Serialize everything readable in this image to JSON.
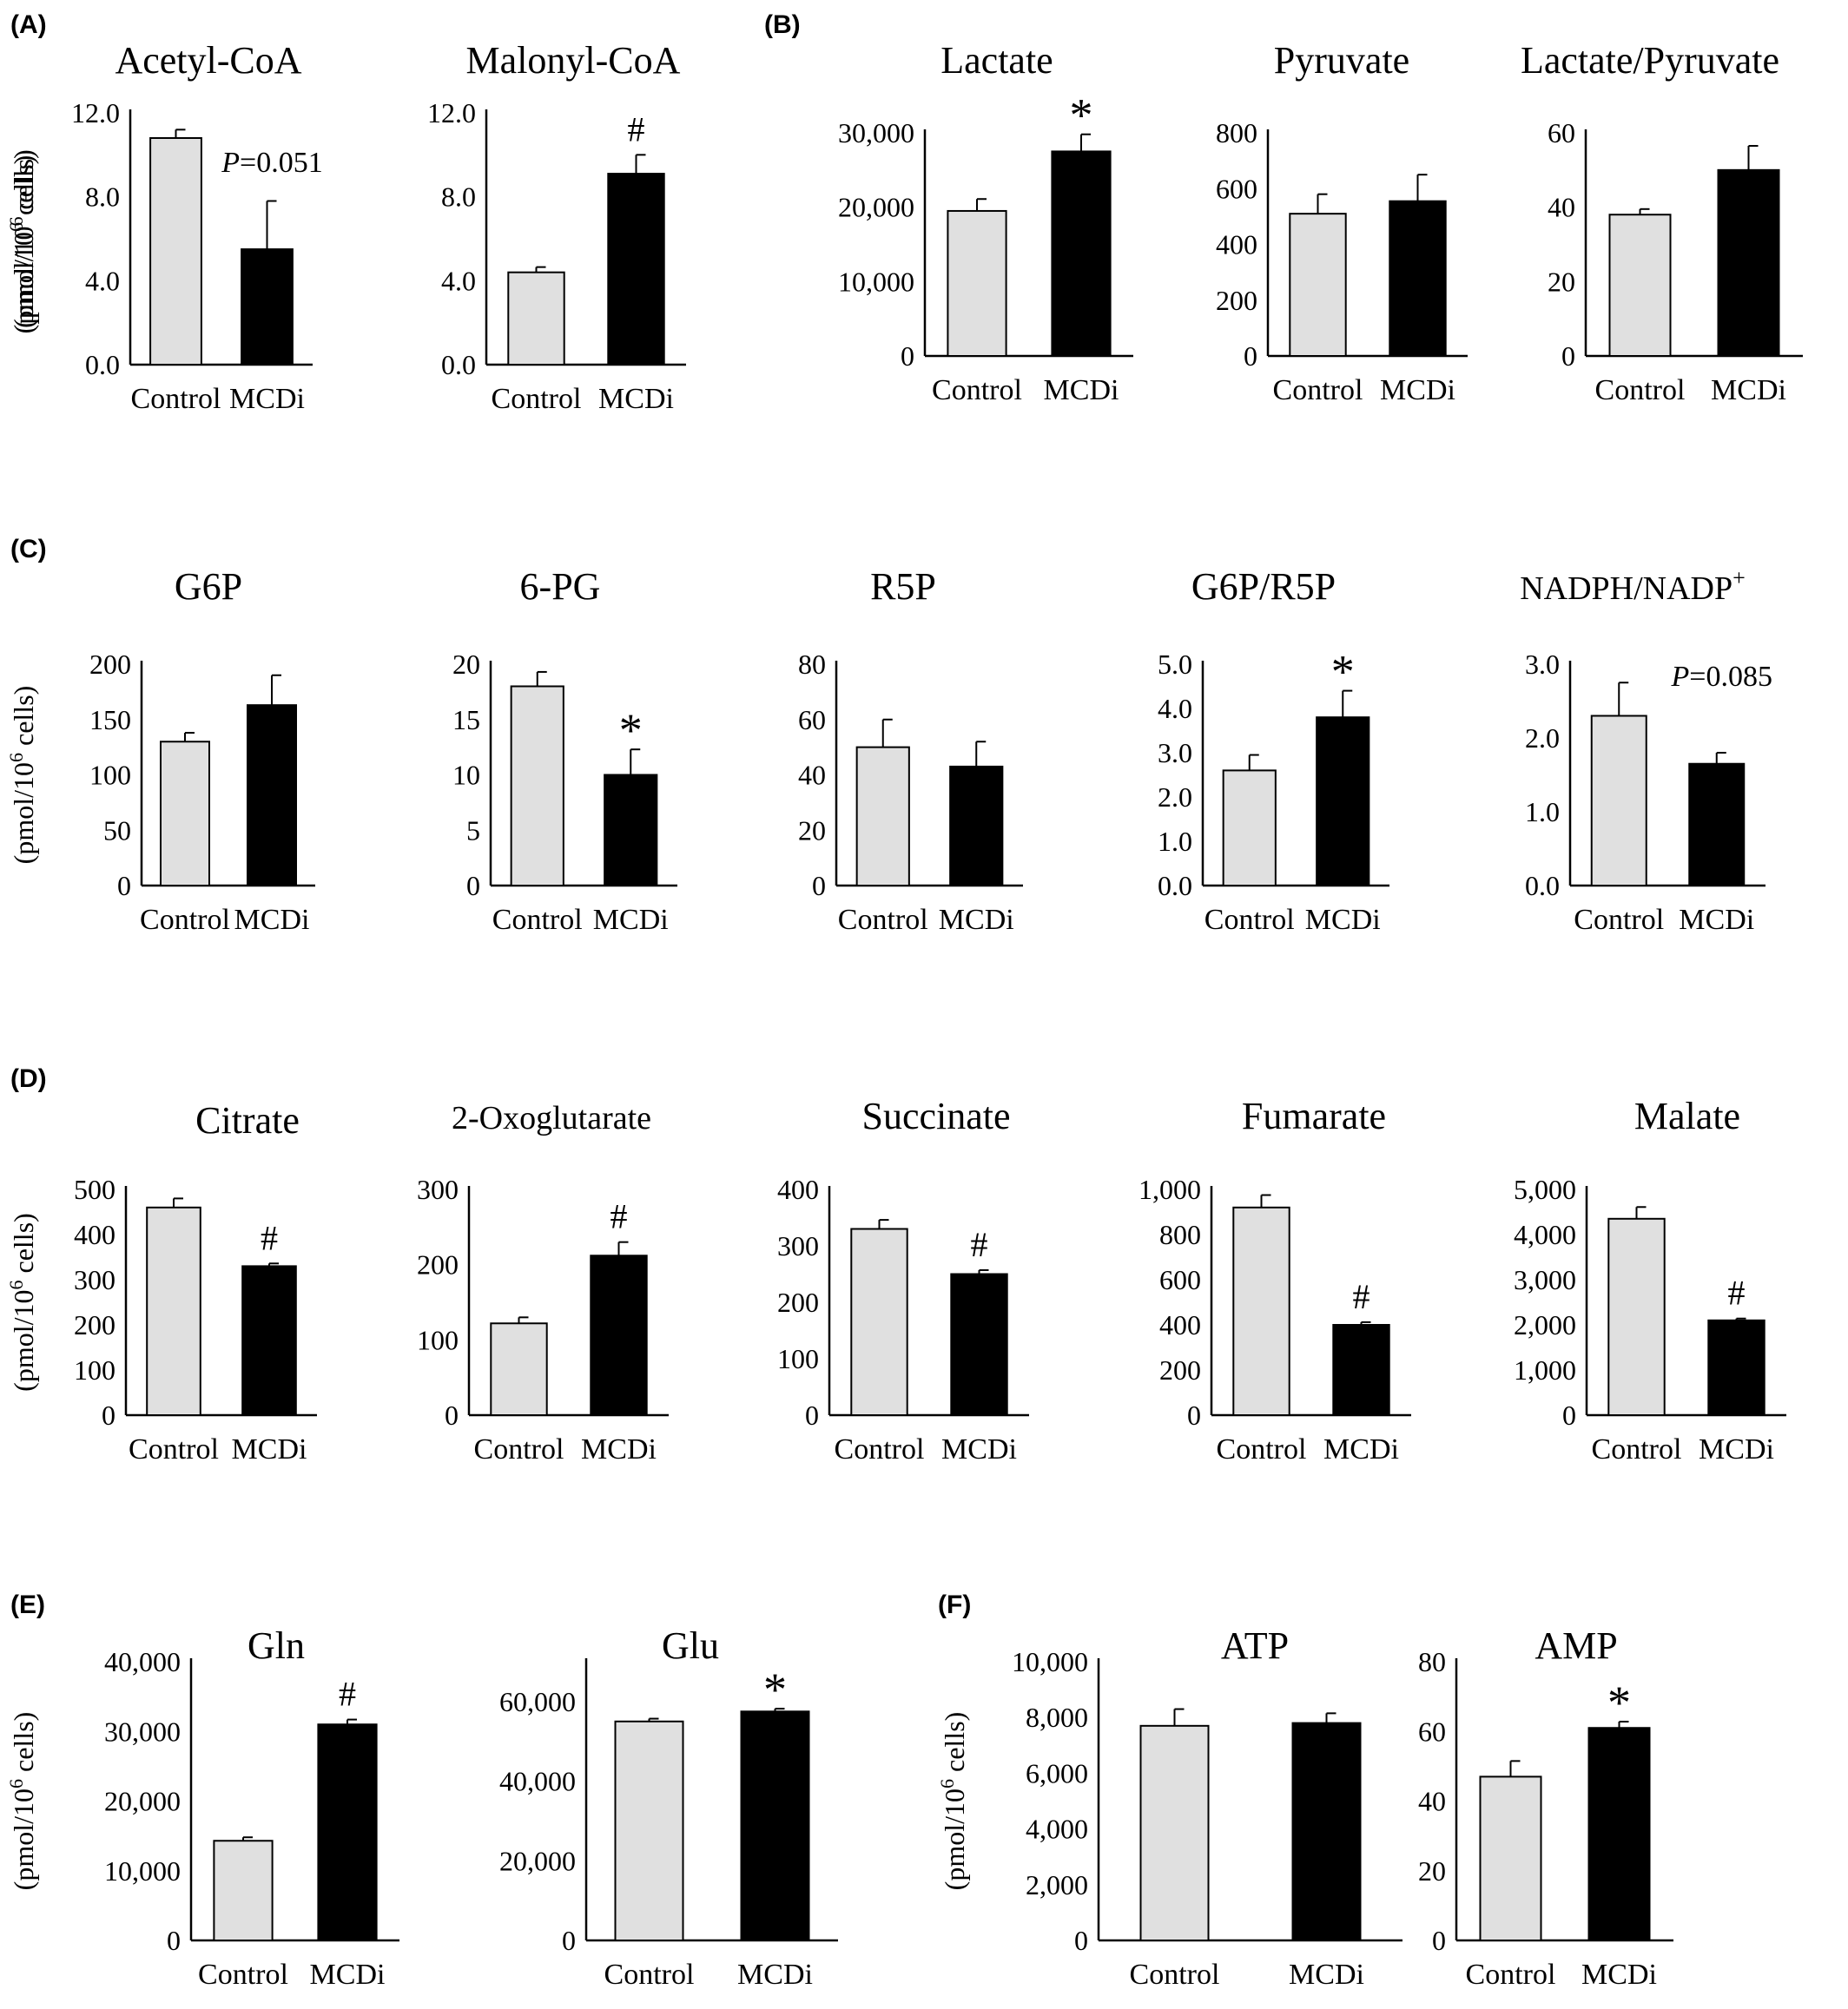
{
  "panel_labels": [
    "(A)",
    "(B)",
    "(C)",
    "(D)",
    "(E)",
    "(F)"
  ],
  "y_axis_label": "(pmol/10",
  "y_axis_label_sup": "6",
  "y_axis_label_end": " cells)",
  "chart_data": [
    {
      "panel": "(A)",
      "type": "bar",
      "title": "Acetyl-CoA",
      "categories": [
        "Control",
        "MCDi"
      ],
      "values": [
        10.8,
        5.5
      ],
      "errors": [
        0.4,
        2.3
      ],
      "ylim": [
        0,
        12
      ],
      "yticks": [
        "0.0",
        "4.0",
        "8.0",
        "12.0"
      ],
      "colors": [
        "#e0e0e0",
        "#000000"
      ],
      "annotation": {
        "prefix": "P",
        "text": "=0.051"
      }
    },
    {
      "panel": "(A)",
      "type": "bar",
      "title": "Malonyl-CoA",
      "categories": [
        "Control",
        "MCDi"
      ],
      "values": [
        4.4,
        9.1
      ],
      "errors": [
        0.25,
        0.9
      ],
      "ylim": [
        0,
        12
      ],
      "yticks": [
        "0.0",
        "4.0",
        "8.0",
        "12.0"
      ],
      "colors": [
        "#e0e0e0",
        "#000000"
      ],
      "marker": "#"
    },
    {
      "panel": "(B)",
      "type": "bar",
      "title": "Lactate",
      "categories": [
        "Control",
        "MCDi"
      ],
      "values": [
        19500,
        27500
      ],
      "errors": [
        1600,
        2300
      ],
      "ylim": [
        0,
        30000
      ],
      "yticks": [
        "0",
        "10,000",
        "20,000",
        "30,000"
      ],
      "colors": [
        "#e0e0e0",
        "#000000"
      ],
      "marker": "*"
    },
    {
      "panel": "(B)",
      "type": "bar",
      "title": "Pyruvate",
      "categories": [
        "Control",
        "MCDi"
      ],
      "values": [
        510,
        555
      ],
      "errors": [
        70,
        95
      ],
      "ylim": [
        0,
        800
      ],
      "yticks": [
        "0",
        "200",
        "400",
        "600",
        "800"
      ],
      "colors": [
        "#e0e0e0",
        "#000000"
      ]
    },
    {
      "panel": "(B)",
      "type": "bar",
      "title": "Lactate/Pyruvate",
      "categories": [
        "Control",
        "MCDi"
      ],
      "values": [
        38,
        50
      ],
      "errors": [
        1.5,
        6.5
      ],
      "ylim": [
        0,
        60
      ],
      "yticks": [
        "0",
        "20",
        "40",
        "60"
      ],
      "colors": [
        "#e0e0e0",
        "#000000"
      ]
    },
    {
      "panel": "(C)",
      "type": "bar",
      "title": "G6P",
      "categories": [
        "Control",
        "MCDi"
      ],
      "values": [
        130,
        163
      ],
      "errors": [
        8,
        27
      ],
      "ylim": [
        0,
        200
      ],
      "yticks": [
        "0",
        "50",
        "100",
        "150",
        "200"
      ],
      "colors": [
        "#e0e0e0",
        "#000000"
      ]
    },
    {
      "panel": "(C)",
      "type": "bar",
      "title": "6-PG",
      "categories": [
        "Control",
        "MCDi"
      ],
      "values": [
        18,
        10
      ],
      "errors": [
        1.3,
        2.3
      ],
      "ylim": [
        0,
        20
      ],
      "yticks": [
        "0",
        "5",
        "10",
        "15",
        "20"
      ],
      "colors": [
        "#e0e0e0",
        "#000000"
      ],
      "marker": "*"
    },
    {
      "panel": "(C)",
      "type": "bar",
      "title": "R5P",
      "categories": [
        "Control",
        "MCDi"
      ],
      "values": [
        50,
        43
      ],
      "errors": [
        10,
        9
      ],
      "ylim": [
        0,
        80
      ],
      "yticks": [
        "0",
        "20",
        "40",
        "60",
        "80"
      ],
      "colors": [
        "#e0e0e0",
        "#000000"
      ]
    },
    {
      "panel": "(C)",
      "type": "bar",
      "title": "G6P/R5P",
      "categories": [
        "Control",
        "MCDi"
      ],
      "values": [
        2.6,
        3.8
      ],
      "errors": [
        0.35,
        0.6
      ],
      "ylim": [
        0,
        5
      ],
      "yticks": [
        "0.0",
        "1.0",
        "2.0",
        "3.0",
        "4.0",
        "5.0"
      ],
      "colors": [
        "#e0e0e0",
        "#000000"
      ],
      "marker": "*"
    },
    {
      "panel": "(C)",
      "type": "bar",
      "title": "NADPH/NADP",
      "title_sup": "+",
      "categories": [
        "Control",
        "MCDi"
      ],
      "values": [
        2.3,
        1.65
      ],
      "errors": [
        0.45,
        0.15
      ],
      "ylim": [
        0,
        3
      ],
      "yticks": [
        "0.0",
        "1.0",
        "2.0",
        "3.0"
      ],
      "colors": [
        "#e0e0e0",
        "#000000"
      ],
      "annotation": {
        "prefix": "P",
        "text": "=0.085"
      }
    },
    {
      "panel": "(D)",
      "type": "bar",
      "title": "Citrate",
      "categories": [
        "Control",
        "MCDi"
      ],
      "values": [
        460,
        330
      ],
      "errors": [
        20,
        6
      ],
      "ylim": [
        0,
        500
      ],
      "yticks": [
        "0",
        "100",
        "200",
        "300",
        "400",
        "500"
      ],
      "colors": [
        "#e0e0e0",
        "#000000"
      ],
      "marker": "#"
    },
    {
      "panel": "(D)",
      "type": "bar",
      "title": "2-Oxoglutarate",
      "categories": [
        "Control",
        "MCDi"
      ],
      "values": [
        122,
        212
      ],
      "errors": [
        8,
        18
      ],
      "ylim": [
        0,
        300
      ],
      "yticks": [
        "0",
        "100",
        "200",
        "300"
      ],
      "colors": [
        "#e0e0e0",
        "#000000"
      ],
      "marker": "#"
    },
    {
      "panel": "(D)",
      "type": "bar",
      "title": "Succinate",
      "categories": [
        "Control",
        "MCDi"
      ],
      "values": [
        330,
        250
      ],
      "errors": [
        16,
        7
      ],
      "ylim": [
        0,
        400
      ],
      "yticks": [
        "0",
        "100",
        "200",
        "300",
        "400"
      ],
      "colors": [
        "#e0e0e0",
        "#000000"
      ],
      "marker": "#"
    },
    {
      "panel": "(D)",
      "type": "bar",
      "title": "Fumarate",
      "categories": [
        "Control",
        "MCDi"
      ],
      "values": [
        920,
        400
      ],
      "errors": [
        55,
        12
      ],
      "ylim": [
        0,
        1000
      ],
      "yticks": [
        "0",
        "200",
        "400",
        "600",
        "800",
        "1,000"
      ],
      "colors": [
        "#e0e0e0",
        "#000000"
      ],
      "marker": "#"
    },
    {
      "panel": "(D)",
      "type": "bar",
      "title": "Malate",
      "categories": [
        "Control",
        "MCDi"
      ],
      "values": [
        4350,
        2100
      ],
      "errors": [
        260,
        40
      ],
      "ylim": [
        0,
        5000
      ],
      "yticks": [
        "0",
        "1,000",
        "2,000",
        "3,000",
        "4,000",
        "5,000"
      ],
      "colors": [
        "#e0e0e0",
        "#000000"
      ],
      "marker": "#"
    },
    {
      "panel": "(E)",
      "type": "bar",
      "title": "Gln",
      "categories": [
        "Control",
        "MCDi"
      ],
      "values": [
        14300,
        31000
      ],
      "errors": [
        500,
        700
      ],
      "ylim": [
        0,
        40000
      ],
      "yticks": [
        "0",
        "10,000",
        "20,000",
        "30,000",
        "40,000"
      ],
      "colors": [
        "#e0e0e0",
        "#000000"
      ],
      "marker": "#"
    },
    {
      "panel": "(E)",
      "type": "bar",
      "title": "Glu",
      "categories": [
        "Control",
        "MCDi"
      ],
      "values": [
        55000,
        57500
      ],
      "errors": [
        700,
        700
      ],
      "ylim": [
        0,
        70000
      ],
      "yticks": [
        "0",
        "20,000",
        "40,000",
        "60,000"
      ],
      "colors": [
        "#e0e0e0",
        "#000000"
      ],
      "marker": "*"
    },
    {
      "panel": "(F)",
      "type": "bar",
      "title": "ATP",
      "categories": [
        "Control",
        "MCDi"
      ],
      "values": [
        7700,
        7800
      ],
      "errors": [
        600,
        350
      ],
      "ylim": [
        0,
        10000
      ],
      "yticks": [
        "0",
        "2,000",
        "4,000",
        "6,000",
        "8,000",
        "10,000"
      ],
      "colors": [
        "#e0e0e0",
        "#000000"
      ]
    },
    {
      "panel": "(F)",
      "type": "bar",
      "title": "AMP",
      "categories": [
        "Control",
        "MCDi"
      ],
      "values": [
        47,
        61
      ],
      "errors": [
        4.5,
        1.8
      ],
      "ylim": [
        0,
        80
      ],
      "yticks": [
        "0",
        "20",
        "40",
        "60",
        "80"
      ],
      "colors": [
        "#e0e0e0",
        "#000000"
      ],
      "marker": "*"
    }
  ]
}
